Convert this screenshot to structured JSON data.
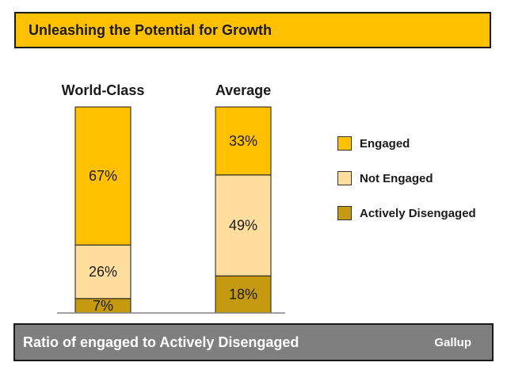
{
  "title": "Unleashing the Potential for Growth",
  "chart_data": {
    "type": "bar",
    "stacked": true,
    "normalized": "percent",
    "categories": [
      "World-Class",
      "Average"
    ],
    "series": [
      {
        "name": "Actively Disengaged",
        "values": [
          7,
          18
        ],
        "color": "#C59A10"
      },
      {
        "name": "Not Engaged",
        "values": [
          26,
          49
        ],
        "color": "#FFDE9D"
      },
      {
        "name": "Engaged",
        "values": [
          67,
          33
        ],
        "color": "#FFC000"
      }
    ],
    "value_suffix": "%",
    "legend_order": [
      "Engaged",
      "Not Engaged",
      "Actively Disengaged"
    ],
    "legend_position": "right",
    "ylim": [
      0,
      100
    ],
    "grid": false,
    "xlabel": "",
    "ylabel": ""
  },
  "legend": {
    "items": [
      {
        "label": "Engaged",
        "color": "#FFC000"
      },
      {
        "label": "Not Engaged",
        "color": "#FFDE9D"
      },
      {
        "label": "Actively Disengaged",
        "color": "#C59A10"
      }
    ]
  },
  "footer": {
    "text": "Ratio of engaged to Actively Disengaged",
    "source": "Gallup"
  }
}
